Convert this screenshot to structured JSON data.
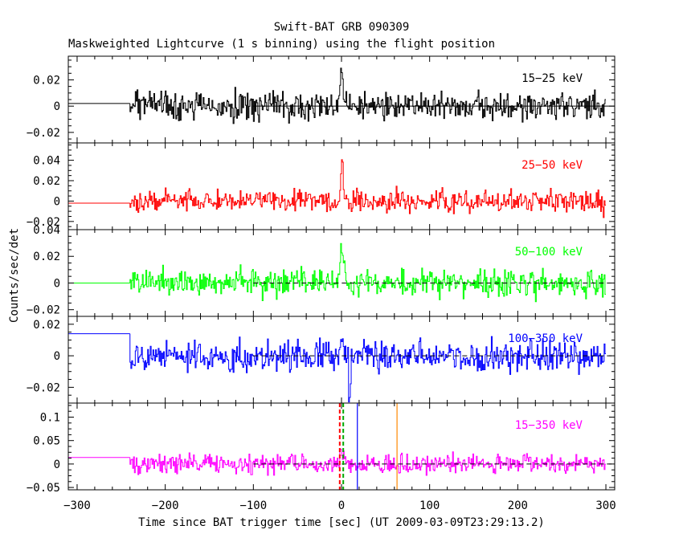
{
  "title": "Swift-BAT GRB 090309",
  "subtitle": "Maskweighted Lightcurve (1 s binning) using the flight position",
  "chart_data": {
    "type": "line",
    "xlabel": "Time since BAT trigger time [sec] (UT 2009-03-09T23:29:13.2)",
    "ylabel": "Counts/sec/det",
    "xlim": [
      -310,
      310
    ],
    "x_ticks": [
      -300,
      -200,
      -100,
      0,
      100,
      200,
      300
    ],
    "x_tick_labels": [
      "−300",
      "−200",
      "−100",
      "0",
      "100",
      "200",
      "300"
    ],
    "data_start": -240,
    "data_end": 300,
    "background_dash_start": -100,
    "panels": [
      {
        "band": "15−25 keV",
        "color": "#000000",
        "ylim": [
          -0.028,
          0.038
        ],
        "y_ticks": [
          -0.02,
          0,
          0.02
        ],
        "y_tick_labels": [
          "−0.02",
          "0",
          "0.02"
        ],
        "pre_level": 0.002,
        "noise": 0.0078,
        "spike": 0.035,
        "spike_width": 1.5,
        "dip": 0,
        "dip_at": 8,
        "dashed_zero": false
      },
      {
        "band": "25−50 keV",
        "color": "#ff0000",
        "ylim": [
          -0.028,
          0.057
        ],
        "y_ticks": [
          -0.02,
          0,
          0.02,
          0.04
        ],
        "y_tick_labels": [
          "−0.02",
          "0",
          "0.02",
          "0.04"
        ],
        "pre_level": -0.002,
        "noise": 0.0075,
        "spike": 0.05,
        "spike_width": 1.2,
        "dip": 0,
        "dip_at": 8,
        "dashed_zero": false
      },
      {
        "band": "50−100 keV",
        "color": "#00ff00",
        "ylim": [
          -0.025,
          0.04
        ],
        "y_ticks": [
          -0.02,
          0,
          0.02,
          0.04
        ],
        "y_tick_labels": [
          "−0.02",
          "0",
          "0.02",
          "0.04"
        ],
        "pre_level": 0,
        "noise": 0.0072,
        "spike": 0.03,
        "spike_width": 2,
        "dip": 0,
        "dip_at": 8,
        "dashed_zero": true
      },
      {
        "band": "100−350 keV",
        "color": "#0000ff",
        "ylim": [
          -0.03,
          0.025
        ],
        "y_ticks": [
          -0.02,
          0,
          0.02
        ],
        "y_tick_labels": [
          "−0.02",
          "0",
          "0.02"
        ],
        "pre_level": 0.014,
        "noise": 0.0068,
        "spike": 0.018,
        "spike_width": 1.5,
        "dip": -0.024,
        "dip_at": 8,
        "dashed_zero": true
      },
      {
        "band": "15−350 keV",
        "color": "#ff00ff",
        "ylim": [
          -0.055,
          0.13
        ],
        "y_ticks": [
          -0.05,
          0,
          0.05,
          0.1
        ],
        "y_tick_labels": [
          "−0.05",
          "0",
          "0.05",
          "0.1"
        ],
        "pre_level": 0.014,
        "noise": 0.014,
        "spike": 0.03,
        "spike_width": 2,
        "dip": 0,
        "dip_at": 8,
        "dashed_zero": true
      }
    ],
    "markers": [
      {
        "x": -2,
        "color": "#ff0000",
        "style": "dashed"
      },
      {
        "x": 2,
        "color": "#00aa00",
        "style": "dashed"
      },
      {
        "x": 18,
        "color": "#0000ff",
        "style": "solid"
      },
      {
        "x": 63,
        "color": "#ff8800",
        "style": "solid"
      }
    ]
  }
}
